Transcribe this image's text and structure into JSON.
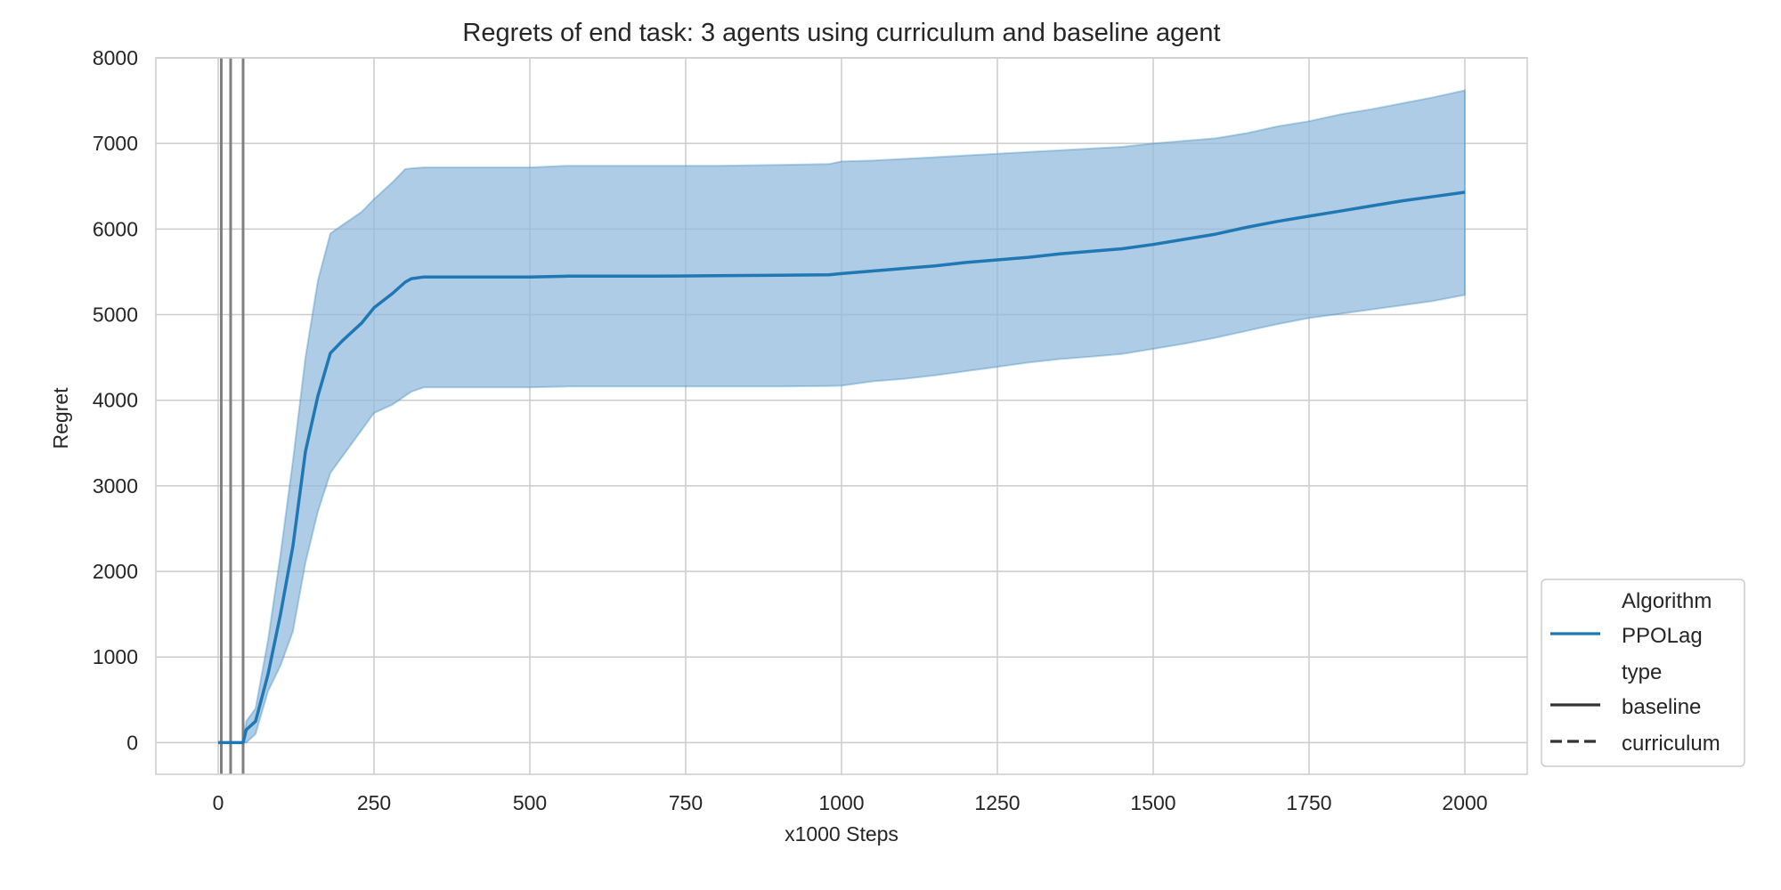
{
  "chart_data": {
    "type": "line",
    "title": "Regrets of end task: 3 agents using curriculum and baseline agent",
    "xlabel": "x1000 Steps",
    "ylabel": "Regret",
    "xlim": [
      -100,
      2100
    ],
    "ylim": [
      -370,
      8000
    ],
    "x_ticks": [
      0,
      250,
      500,
      750,
      1000,
      1250,
      1500,
      1750,
      2000
    ],
    "y_ticks": [
      0,
      1000,
      2000,
      3000,
      4000,
      5000,
      6000,
      7000,
      8000
    ],
    "grid": true,
    "vertical_lines_x": [
      5,
      20,
      40
    ],
    "legend": {
      "placement": "outside right, lower",
      "entries": [
        {
          "kind": "header",
          "label": "Algorithm"
        },
        {
          "kind": "line",
          "label": "PPOLag",
          "color": "#1f77b4",
          "dash": "solid"
        },
        {
          "kind": "header",
          "label": "type"
        },
        {
          "kind": "line",
          "label": "baseline",
          "color": "#333333",
          "dash": "solid"
        },
        {
          "kind": "line",
          "label": "curriculum",
          "color": "#333333",
          "dash": "dashed"
        }
      ]
    },
    "series": [
      {
        "name": "PPOLag",
        "type": "baseline",
        "color": "#1f77b4",
        "band_color": "#8fb8dd",
        "x": [
          0,
          20,
          40,
          45,
          60,
          80,
          100,
          120,
          140,
          160,
          180,
          200,
          230,
          250,
          280,
          300,
          310,
          330,
          400,
          500,
          560,
          600,
          700,
          800,
          900,
          980,
          1000,
          1050,
          1100,
          1150,
          1200,
          1250,
          1300,
          1350,
          1400,
          1450,
          1500,
          1550,
          1600,
          1650,
          1700,
          1750,
          1800,
          1850,
          1900,
          1950,
          2000
        ],
        "mean": [
          0,
          0,
          0,
          150,
          250,
          800,
          1500,
          2300,
          3400,
          4050,
          4550,
          4700,
          4900,
          5080,
          5250,
          5380,
          5420,
          5440,
          5440,
          5440,
          5450,
          5450,
          5450,
          5455,
          5460,
          5465,
          5480,
          5510,
          5540,
          5570,
          5610,
          5640,
          5670,
          5710,
          5740,
          5770,
          5820,
          5880,
          5940,
          6020,
          6090,
          6150,
          6210,
          6270,
          6330,
          6380,
          6430
        ],
        "upper": [
          0,
          0,
          0,
          250,
          400,
          1200,
          2200,
          3300,
          4500,
          5400,
          5950,
          6050,
          6200,
          6350,
          6550,
          6700,
          6710,
          6720,
          6720,
          6720,
          6740,
          6740,
          6740,
          6740,
          6750,
          6760,
          6790,
          6800,
          6820,
          6840,
          6860,
          6880,
          6900,
          6920,
          6940,
          6960,
          7000,
          7030,
          7060,
          7120,
          7200,
          7260,
          7340,
          7400,
          7470,
          7540,
          7620
        ],
        "lower": [
          0,
          0,
          0,
          0,
          100,
          600,
          900,
          1300,
          2100,
          2700,
          3150,
          3350,
          3650,
          3850,
          3950,
          4050,
          4100,
          4150,
          4150,
          4150,
          4160,
          4160,
          4160,
          4160,
          4160,
          4165,
          4170,
          4220,
          4250,
          4290,
          4340,
          4390,
          4440,
          4480,
          4510,
          4540,
          4600,
          4660,
          4730,
          4810,
          4890,
          4960,
          5010,
          5060,
          5110,
          5160,
          5230
        ]
      }
    ]
  }
}
